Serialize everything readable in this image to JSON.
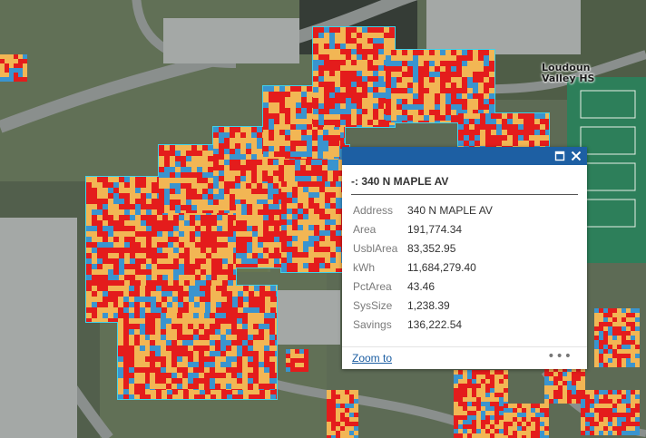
{
  "map": {
    "place_label": "Loudoun\nValley HS",
    "colors": {
      "ground": "#5d6b55",
      "grass": "#6f7d55",
      "road": "#8a8f8d",
      "parking": "#a4a8a6",
      "roof_outline": "#3fd2ea",
      "solar_high": "#e41c1c",
      "solar_mid": "#f2b654",
      "solar_low": "#3a94cf",
      "court": "#2d7f5a"
    }
  },
  "popup": {
    "title": "-: 340 N MAPLE AV",
    "attributes": [
      {
        "key": "Address",
        "value": "340 N MAPLE AV"
      },
      {
        "key": "Area",
        "value": "191,774.34"
      },
      {
        "key": "UsblArea",
        "value": "83,352.95"
      },
      {
        "key": "kWh",
        "value": "11,684,279.40"
      },
      {
        "key": "PctArea",
        "value": "43.46"
      },
      {
        "key": "SysSize",
        "value": "1,238.39"
      },
      {
        "key": "Savings",
        "value": "136,222.54"
      }
    ],
    "zoom_label": "Zoom to",
    "more_label": "•••",
    "maximize_icon": "maximize-icon",
    "close_icon": "close-icon"
  }
}
